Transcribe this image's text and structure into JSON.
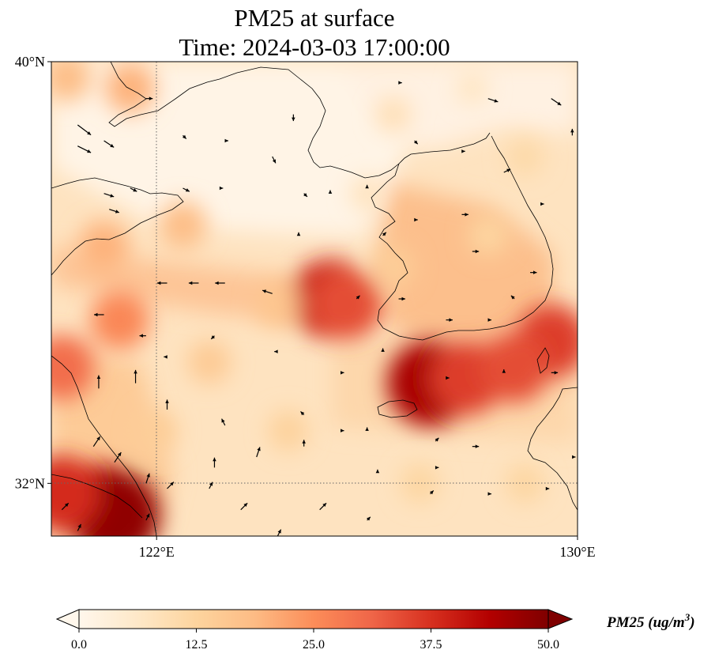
{
  "title": {
    "line1": "PM25 at surface",
    "line2": "Time: 2024-03-03 17:00:00"
  },
  "map": {
    "extent": {
      "lon_min": 120.0,
      "lon_max": 130.0,
      "lat_min": 31.0,
      "lat_max": 40.0
    },
    "lat_ticks": [
      {
        "value": 40,
        "label": "40°N"
      },
      {
        "value": 32,
        "label": "32°N"
      }
    ],
    "lon_ticks": [
      {
        "value": 122,
        "label": "122°E"
      },
      {
        "value": 130,
        "label": "130°E"
      }
    ],
    "gridlines": {
      "lon": [
        122
      ],
      "lat": [
        32
      ],
      "style": "dotted"
    },
    "hotspots": [
      {
        "lon": 125.3,
        "lat": 35.5,
        "value": 40
      },
      {
        "lon": 125.6,
        "lat": 35.4,
        "value": 34
      },
      {
        "lon": 127.2,
        "lat": 33.9,
        "value": 45
      },
      {
        "lon": 127.9,
        "lat": 34.0,
        "value": 36
      },
      {
        "lon": 129.5,
        "lat": 34.7,
        "value": 36
      },
      {
        "lon": 128.8,
        "lat": 34.2,
        "value": 34
      },
      {
        "lon": 120.9,
        "lat": 31.6,
        "value": 42
      },
      {
        "lon": 121.2,
        "lat": 31.4,
        "value": 48
      },
      {
        "lon": 120.2,
        "lat": 31.8,
        "value": 38
      },
      {
        "lon": 121.3,
        "lat": 35.1,
        "value": 26
      },
      {
        "lon": 120.2,
        "lat": 34.2,
        "value": 30
      },
      {
        "lon": 120.3,
        "lat": 39.7,
        "value": 18
      },
      {
        "lon": 121.5,
        "lat": 39.5,
        "value": 20
      },
      {
        "lon": 122.5,
        "lat": 36.9,
        "value": 18
      },
      {
        "lon": 121.0,
        "lat": 36.5,
        "value": 20
      },
      {
        "lon": 126.5,
        "lat": 36.1,
        "value": 14
      },
      {
        "lon": 128.3,
        "lat": 36.7,
        "value": 12
      },
      {
        "lon": 129.0,
        "lat": 38.2,
        "value": 11
      },
      {
        "lon": 126.5,
        "lat": 39.0,
        "value": 9
      },
      {
        "lon": 124.3,
        "lat": 35.4,
        "value": 16
      },
      {
        "lon": 123.0,
        "lat": 34.3,
        "value": 15
      },
      {
        "lon": 124.5,
        "lat": 33.0,
        "value": 13
      },
      {
        "lon": 122.0,
        "lat": 33.0,
        "value": 14
      },
      {
        "lon": 127.0,
        "lat": 32.0,
        "value": 12
      },
      {
        "lon": 129.0,
        "lat": 32.0,
        "value": 12
      },
      {
        "lon": 126.0,
        "lat": 37.5,
        "value": 8
      },
      {
        "lon": 128.0,
        "lat": 39.5,
        "value": 7
      }
    ],
    "winds": [
      {
        "lon": 120.5,
        "lat": 38.8,
        "u": 4,
        "v": -3
      },
      {
        "lon": 120.5,
        "lat": 38.4,
        "u": 4,
        "v": -2
      },
      {
        "lon": 121.0,
        "lat": 38.5,
        "u": 3,
        "v": -2
      },
      {
        "lon": 121.8,
        "lat": 39.3,
        "u": 2,
        "v": 0
      },
      {
        "lon": 122.5,
        "lat": 38.6,
        "u": 1,
        "v": -1
      },
      {
        "lon": 123.3,
        "lat": 38.5,
        "u": 1,
        "v": 0
      },
      {
        "lon": 124.2,
        "lat": 38.2,
        "u": 1,
        "v": -2
      },
      {
        "lon": 124.6,
        "lat": 39.0,
        "u": 0,
        "v": -2
      },
      {
        "lon": 125.3,
        "lat": 37.5,
        "u": 0,
        "v": 1
      },
      {
        "lon": 126.6,
        "lat": 39.6,
        "u": 1,
        "v": 0
      },
      {
        "lon": 128.3,
        "lat": 39.3,
        "u": 3,
        "v": -1
      },
      {
        "lon": 129.5,
        "lat": 39.3,
        "u": 3,
        "v": -2
      },
      {
        "lon": 129.9,
        "lat": 38.6,
        "u": 0,
        "v": 2
      },
      {
        "lon": 126.9,
        "lat": 38.5,
        "u": 1,
        "v": -1
      },
      {
        "lon": 127.8,
        "lat": 38.3,
        "u": 1,
        "v": 0
      },
      {
        "lon": 128.6,
        "lat": 37.9,
        "u": 2,
        "v": 1
      },
      {
        "lon": 129.3,
        "lat": 37.3,
        "u": 1,
        "v": 0
      },
      {
        "lon": 126.0,
        "lat": 37.6,
        "u": 0,
        "v": 1
      },
      {
        "lon": 122.5,
        "lat": 37.6,
        "u": 2,
        "v": -1
      },
      {
        "lon": 121.5,
        "lat": 37.6,
        "u": 2,
        "v": -1
      },
      {
        "lon": 121.0,
        "lat": 37.5,
        "u": 3,
        "v": -1
      },
      {
        "lon": 121.1,
        "lat": 37.2,
        "u": 3,
        "v": -1
      },
      {
        "lon": 123.2,
        "lat": 37.6,
        "u": 1,
        "v": 0
      },
      {
        "lon": 124.8,
        "lat": 37.5,
        "u": 1,
        "v": -1
      },
      {
        "lon": 124.7,
        "lat": 36.7,
        "u": 0,
        "v": 1
      },
      {
        "lon": 126.3,
        "lat": 36.7,
        "u": 1,
        "v": 1
      },
      {
        "lon": 126.9,
        "lat": 37.0,
        "u": 1,
        "v": 0
      },
      {
        "lon": 127.8,
        "lat": 37.1,
        "u": 2,
        "v": 0
      },
      {
        "lon": 128.0,
        "lat": 36.4,
        "u": 2,
        "v": 0
      },
      {
        "lon": 129.1,
        "lat": 36.0,
        "u": 2,
        "v": 0
      },
      {
        "lon": 122.2,
        "lat": 35.8,
        "u": -3,
        "v": 0
      },
      {
        "lon": 122.8,
        "lat": 35.8,
        "u": -3,
        "v": 0
      },
      {
        "lon": 123.3,
        "lat": 35.8,
        "u": -3,
        "v": 0
      },
      {
        "lon": 124.2,
        "lat": 35.6,
        "u": -3,
        "v": 1
      },
      {
        "lon": 125.8,
        "lat": 35.5,
        "u": 1,
        "v": 1
      },
      {
        "lon": 126.6,
        "lat": 35.5,
        "u": 2,
        "v": 0
      },
      {
        "lon": 127.5,
        "lat": 35.1,
        "u": 2,
        "v": 0
      },
      {
        "lon": 128.3,
        "lat": 35.1,
        "u": 1,
        "v": 0
      },
      {
        "lon": 128.8,
        "lat": 35.5,
        "u": -1,
        "v": 1
      },
      {
        "lon": 121.0,
        "lat": 35.2,
        "u": -3,
        "v": 0
      },
      {
        "lon": 121.8,
        "lat": 34.8,
        "u": -2,
        "v": 0
      },
      {
        "lon": 122.2,
        "lat": 34.4,
        "u": -1,
        "v": 0
      },
      {
        "lon": 123.1,
        "lat": 34.8,
        "u": -1,
        "v": -1
      },
      {
        "lon": 124.3,
        "lat": 34.5,
        "u": -1,
        "v": 0
      },
      {
        "lon": 125.5,
        "lat": 34.1,
        "u": 1,
        "v": 0
      },
      {
        "lon": 126.3,
        "lat": 34.5,
        "u": 0,
        "v": 1
      },
      {
        "lon": 127.5,
        "lat": 34.0,
        "u": 1,
        "v": 0
      },
      {
        "lon": 128.6,
        "lat": 34.1,
        "u": 0,
        "v": 1
      },
      {
        "lon": 129.5,
        "lat": 34.1,
        "u": 2,
        "v": 0
      },
      {
        "lon": 120.9,
        "lat": 33.8,
        "u": 0,
        "v": 4
      },
      {
        "lon": 121.6,
        "lat": 33.9,
        "u": 0,
        "v": 4
      },
      {
        "lon": 122.2,
        "lat": 33.4,
        "u": 0,
        "v": 3
      },
      {
        "lon": 123.3,
        "lat": 33.1,
        "u": -1,
        "v": 2
      },
      {
        "lon": 124.8,
        "lat": 33.3,
        "u": -1,
        "v": 1
      },
      {
        "lon": 125.5,
        "lat": 33.0,
        "u": 1,
        "v": 0
      },
      {
        "lon": 126.0,
        "lat": 33.0,
        "u": 0,
        "v": 1
      },
      {
        "lon": 127.3,
        "lat": 32.8,
        "u": 1,
        "v": 1
      },
      {
        "lon": 128.0,
        "lat": 32.7,
        "u": 2,
        "v": 0
      },
      {
        "lon": 123.1,
        "lat": 32.3,
        "u": 0,
        "v": 3
      },
      {
        "lon": 123.9,
        "lat": 32.5,
        "u": 1,
        "v": 3
      },
      {
        "lon": 124.8,
        "lat": 32.7,
        "u": 0,
        "v": 2
      },
      {
        "lon": 126.2,
        "lat": 32.2,
        "u": 0,
        "v": 1
      },
      {
        "lon": 127.3,
        "lat": 32.3,
        "u": 1,
        "v": 0
      },
      {
        "lon": 129.4,
        "lat": 31.9,
        "u": 1,
        "v": 0
      },
      {
        "lon": 129.9,
        "lat": 32.5,
        "u": 1,
        "v": 0
      },
      {
        "lon": 120.8,
        "lat": 32.7,
        "u": 2,
        "v": 3
      },
      {
        "lon": 121.2,
        "lat": 32.4,
        "u": 2,
        "v": 3
      },
      {
        "lon": 121.8,
        "lat": 32.0,
        "u": 1,
        "v": 3
      },
      {
        "lon": 122.2,
        "lat": 31.9,
        "u": 2,
        "v": 2
      },
      {
        "lon": 123.0,
        "lat": 31.9,
        "u": 1,
        "v": 2
      },
      {
        "lon": 123.6,
        "lat": 31.5,
        "u": 2,
        "v": 2
      },
      {
        "lon": 124.3,
        "lat": 31.0,
        "u": 1,
        "v": 2
      },
      {
        "lon": 125.1,
        "lat": 31.5,
        "u": 2,
        "v": 2
      },
      {
        "lon": 126.0,
        "lat": 31.3,
        "u": 1,
        "v": 1
      },
      {
        "lon": 127.2,
        "lat": 31.8,
        "u": 1,
        "v": 1
      },
      {
        "lon": 128.3,
        "lat": 31.8,
        "u": 1,
        "v": 0
      },
      {
        "lon": 120.2,
        "lat": 31.5,
        "u": 2,
        "v": 2
      },
      {
        "lon": 120.5,
        "lat": 31.1,
        "u": 1,
        "v": 2
      },
      {
        "lon": 121.8,
        "lat": 31.3,
        "u": 1,
        "v": 2
      }
    ]
  },
  "colorbar": {
    "min": 0.0,
    "max": 50.0,
    "extend": "both",
    "cmap": "OrRd",
    "stops": [
      "#fff7ec",
      "#fee8c8",
      "#fdd49e",
      "#fdbb84",
      "#fc8d59",
      "#ef6548",
      "#d7301f",
      "#b30000",
      "#7f0000"
    ],
    "ticks": [
      "0.0",
      "12.5",
      "25.0",
      "37.5",
      "50.0"
    ],
    "label": "PM25 (ug/m",
    "label_sup": "3",
    "label_close": ")"
  }
}
